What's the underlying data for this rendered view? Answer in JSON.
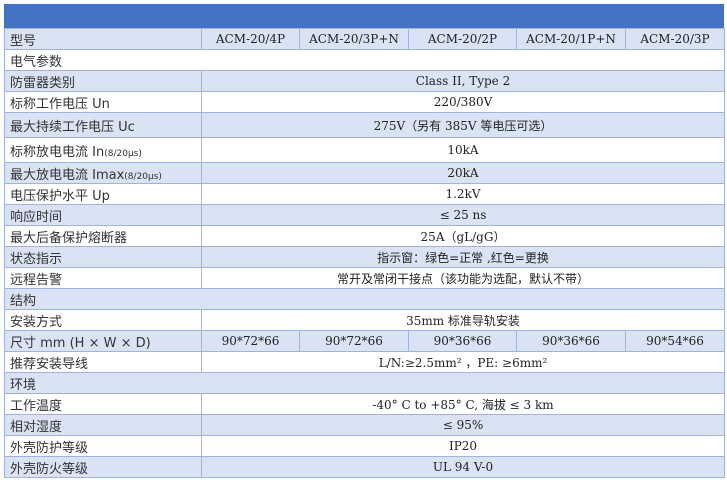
{
  "header": {
    "label": "型号",
    "models": [
      "ACM-20/4P",
      "ACM-20/3P+N",
      "ACM-20/2P",
      "ACM-20/1P+N",
      "ACM-20/3P"
    ]
  },
  "rows": [
    {
      "type": "section",
      "label": "电气参数",
      "bg": "w"
    },
    {
      "label": "防雷器类别",
      "value": "Class II, Type 2",
      "bg": "b"
    },
    {
      "label": "标称工作电压 Un",
      "value": "220/380V",
      "bg": "w"
    },
    {
      "label": "最大持续工作电压 Uc",
      "value": "275V（另有 385V 等电压可选）",
      "bg": "b",
      "tall": true
    },
    {
      "label": "标称放电电流 In",
      "suffix": "(8/20μs)",
      "value": "10kA",
      "bg": "w",
      "tall": true
    },
    {
      "label": "最大放电电流 Imax",
      "suffix": "(8/20μs)",
      "value": "20kA",
      "bg": "b"
    },
    {
      "label": "电压保护水平 Up",
      "value": "1.2kV",
      "bg": "w"
    },
    {
      "label": "响应时间",
      "value": "≤ 25 ns",
      "bg": "b"
    },
    {
      "label": "最大后备保护熔断器",
      "value": "25A（gL/gG）",
      "bg": "w"
    },
    {
      "label": "状态指示",
      "value": "指示窗：绿色=正常 ,红色=更换",
      "bg": "b"
    },
    {
      "label": "远程告警",
      "value": "常开及常闭干接点（该功能为选配，默认不带）",
      "bg": "w"
    },
    {
      "type": "section",
      "label": "结构",
      "bg": "b"
    },
    {
      "label": "安装方式",
      "value": "35mm 标准导轨安装",
      "bg": "w"
    },
    {
      "label": "尺寸 mm (H × W × D)",
      "values": [
        "90*72*66",
        "90*72*66",
        "90*36*66",
        "90*36*66",
        "90*54*66"
      ],
      "bg": "b"
    },
    {
      "label": "推荐安装导线",
      "value": "L/N:≥2.5mm² ，PE: ≥6mm²",
      "bg": "w"
    },
    {
      "type": "section",
      "label": "环境",
      "bg": "b"
    },
    {
      "label": "工作温度",
      "value": "-40° C to +85° C, 海拔 ≤ 3 km",
      "bg": "w"
    },
    {
      "label": "相对湿度",
      "value": "≤ 95%",
      "bg": "b"
    },
    {
      "label": "外壳防护等级",
      "value": "IP20",
      "bg": "w"
    },
    {
      "label": "外壳防火等级",
      "value": "UL 94 V-0",
      "bg": "b"
    }
  ],
  "colors": {
    "header_bar": "#4472c4",
    "row_alt": "#dae3f3",
    "border": "#9db3e0"
  }
}
